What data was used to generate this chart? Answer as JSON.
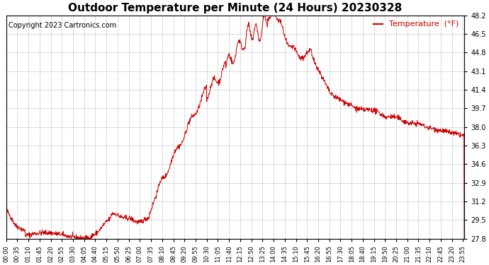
{
  "title": "Outdoor Temperature per Minute (24 Hours) 20230328",
  "copyright_text": "Copyright 2023 Cartronics.com",
  "legend_label": "Temperature  (°F)",
  "line_color": "#cc0000",
  "background_color": "#ffffff",
  "grid_color": "#aaaaaa",
  "title_color": "#000000",
  "copyright_color": "#000000",
  "legend_color": "#cc0000",
  "ylim": [
    27.8,
    48.2
  ],
  "yticks": [
    27.8,
    29.5,
    31.2,
    32.9,
    34.6,
    36.3,
    38.0,
    39.7,
    41.4,
    43.1,
    44.8,
    46.5,
    48.2
  ],
  "num_minutes": 1440,
  "title_fontsize": 11,
  "copyright_fontsize": 7,
  "legend_fontsize": 8,
  "tick_fontsize": 6,
  "ytick_fontsize": 7,
  "xtick_labels": [
    "00:00",
    "00:35",
    "01:10",
    "01:45",
    "02:20",
    "02:55",
    "03:30",
    "04:05",
    "04:40",
    "05:15",
    "05:50",
    "06:25",
    "07:00",
    "07:35",
    "08:10",
    "08:45",
    "09:20",
    "09:55",
    "10:30",
    "11:05",
    "11:40",
    "12:15",
    "12:50",
    "13:25",
    "14:00",
    "14:35",
    "15:10",
    "15:45",
    "16:20",
    "16:55",
    "17:30",
    "18:05",
    "18:40",
    "19:15",
    "19:50",
    "20:25",
    "21:00",
    "21:35",
    "22:10",
    "22:45",
    "23:20",
    "23:55"
  ]
}
